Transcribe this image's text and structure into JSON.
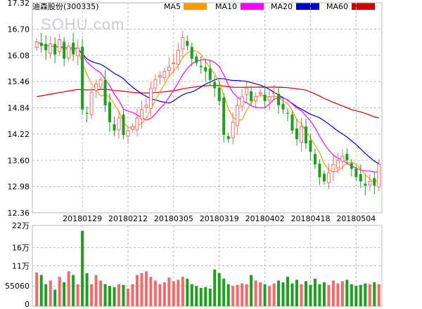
{
  "header": {
    "title": "迪森股份(300335)",
    "watermark": "SOHU.com"
  },
  "colors": {
    "up": "#f26b6b",
    "down": "#1f9e1f",
    "grid": "#b8b8b8",
    "ma5": "#ff9900",
    "ma10": "#ff00ff",
    "ma20": "#0000cc",
    "ma60": "#cc0000"
  },
  "chart_data": [
    {
      "type": "candlestick",
      "title": "迪森股份(300335)",
      "y_ticks": [
        "17.32",
        "16.70",
        "16.08",
        "15.46",
        "14.84",
        "14.22",
        "13.60",
        "12.98",
        "12.36"
      ],
      "ylim": [
        12.36,
        17.32
      ],
      "x_ticks": [
        {
          "label": "20180129",
          "index": 10
        },
        {
          "label": "20180212",
          "index": 20
        },
        {
          "label": "20180305",
          "index": 30
        },
        {
          "label": "20180319",
          "index": 40
        },
        {
          "label": "20180402",
          "index": 50
        },
        {
          "label": "20180418",
          "index": 60
        },
        {
          "label": "20180504",
          "index": 70
        }
      ],
      "legend": [
        {
          "name": "MA5",
          "color": "#ff9900"
        },
        {
          "name": "MA10",
          "color": "#ff00ff"
        },
        {
          "name": "MA20",
          "color": "#0000cc"
        },
        {
          "name": "MA60",
          "color": "#cc0000"
        }
      ],
      "grid": true,
      "ma60_start": 15.08,
      "closes": [
        16.4,
        16.3,
        16.2,
        16.35,
        16.1,
        16.45,
        16.0,
        16.3,
        16.1,
        16.25,
        14.8,
        14.7,
        15.2,
        15.4,
        15.5,
        14.9,
        14.5,
        14.3,
        14.6,
        14.2,
        14.3,
        14.4,
        14.6,
        14.8,
        14.9,
        15.3,
        15.5,
        15.6,
        15.7,
        15.8,
        15.9,
        16.2,
        16.5,
        16.3,
        16.0,
        15.9,
        15.8,
        15.7,
        15.5,
        15.3,
        15.0,
        14.2,
        14.1,
        14.5,
        14.9,
        15.1,
        15.3,
        15.0,
        15.1,
        15.2,
        15.0,
        15.1,
        15.2,
        14.9,
        14.8,
        14.7,
        14.3,
        14.1,
        14.4,
        14.0,
        13.8,
        13.5,
        13.2,
        13.1,
        13.3,
        13.5,
        13.6,
        13.7,
        13.6,
        13.4,
        13.2,
        13.1,
        13.0,
        13.1,
        13.0,
        13.5
      ]
    },
    {
      "type": "bar",
      "title": "",
      "y_ticks": [
        "22万",
        "16万",
        "11万",
        "55060",
        "0"
      ],
      "ylim": [
        0,
        220000
      ],
      "volumes": [
        92000,
        85000,
        60000,
        70000,
        45000,
        80000,
        65000,
        95000,
        85000,
        60000,
        205000,
        90000,
        60000,
        85000,
        70000,
        60000,
        55000,
        52000,
        60000,
        58000,
        48000,
        60000,
        85000,
        90000,
        95000,
        80000,
        70000,
        60000,
        65000,
        78000,
        68000,
        72000,
        80000,
        75000,
        60000,
        55000,
        50000,
        52000,
        48000,
        100000,
        90000,
        75000,
        60000,
        55000,
        58000,
        62000,
        60000,
        85000,
        70000,
        65000,
        60000,
        55000,
        62000,
        70000,
        65000,
        80000,
        62000,
        72000,
        60000,
        68000,
        58000,
        75000,
        60000,
        65000,
        58000,
        70000,
        62000,
        68000,
        72000,
        60000,
        55000,
        58000,
        62000,
        60000,
        65000,
        60000
      ]
    }
  ]
}
